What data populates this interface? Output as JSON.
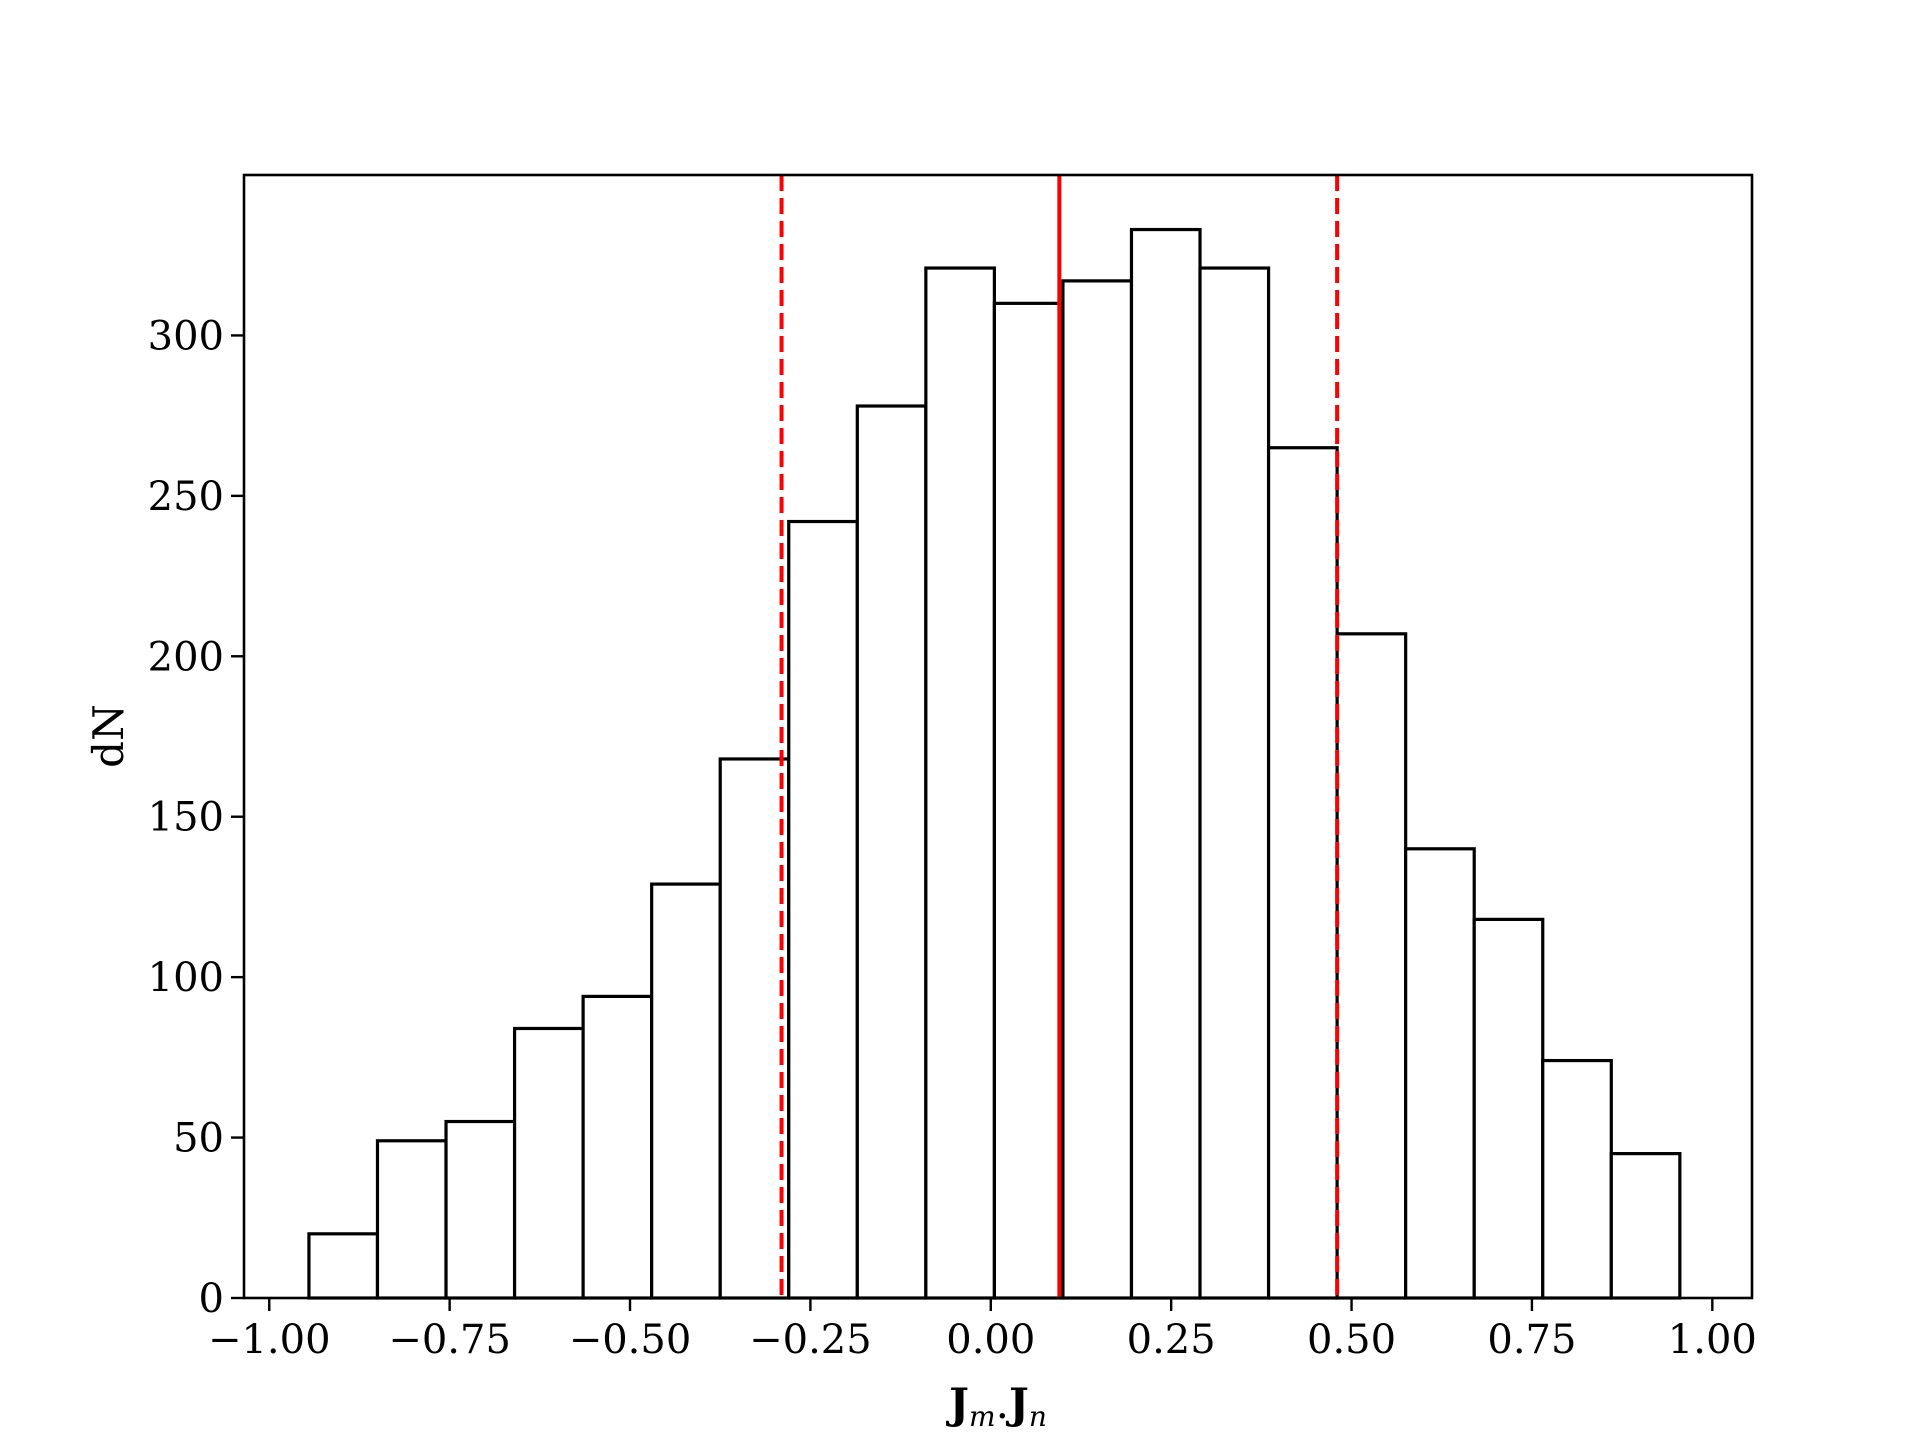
{
  "chart_data": {
    "type": "bar",
    "subtype": "histogram",
    "bin_edges": [
      -0.945,
      -0.85,
      -0.755,
      -0.66,
      -0.565,
      -0.47,
      -0.375,
      -0.28,
      -0.185,
      -0.09,
      0.005,
      0.1,
      0.195,
      0.29,
      0.385,
      0.48,
      0.575,
      0.67,
      0.765,
      0.86,
      0.955
    ],
    "values": [
      20,
      49,
      55,
      84,
      94,
      129,
      168,
      242,
      278,
      321,
      310,
      317,
      333,
      321,
      265,
      207,
      140,
      118,
      74,
      45
    ],
    "xlabel": {
      "main1": "J",
      "sub1": "m",
      "sep": ".",
      "main2": "J",
      "sub2": "n"
    },
    "ylabel": "dN",
    "xlim": [
      -1.035,
      1.055
    ],
    "ylim": [
      0,
      350
    ],
    "xticks": [
      -1.0,
      -0.75,
      -0.5,
      -0.25,
      0.0,
      0.25,
      0.5,
      0.75,
      1.0
    ],
    "xtick_labels": [
      "−1.00",
      "−0.75",
      "−0.50",
      "−0.25",
      "0.00",
      "0.25",
      "0.50",
      "0.75",
      "1.00"
    ],
    "yticks": [
      0,
      50,
      100,
      150,
      200,
      250,
      300
    ],
    "ytick_labels": [
      "0",
      "50",
      "100",
      "150",
      "200",
      "250",
      "300"
    ],
    "vlines": [
      {
        "x": 0.095,
        "style": "solid",
        "color": "#ff0000"
      },
      {
        "x": -0.29,
        "style": "dashed",
        "color": "#ff0000"
      },
      {
        "x": 0.48,
        "style": "dashed",
        "color": "#ff0000"
      }
    ],
    "bar_color": "#ffffff",
    "edge_color": "#000000",
    "grid": false
  }
}
